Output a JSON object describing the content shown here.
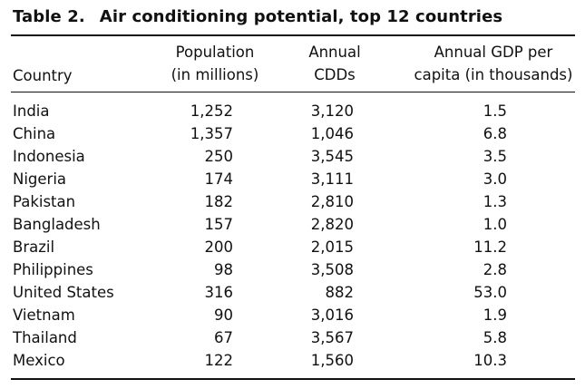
{
  "table": {
    "number": "Table 2.",
    "title": "Air conditioning potential, top 12 countries",
    "headers": {
      "country": "Country",
      "population": [
        "Population",
        "(in millions)"
      ],
      "cdds": [
        "Annual",
        "CDDs"
      ],
      "gdp": [
        "Annual GDP per",
        "capita (in thousands)"
      ]
    },
    "rows": [
      {
        "country": "India",
        "population": "1,252",
        "cdds": "3,120",
        "gdp": "1.5"
      },
      {
        "country": "China",
        "population": "1,357",
        "cdds": "1,046",
        "gdp": "6.8"
      },
      {
        "country": "Indonesia",
        "population": "250",
        "cdds": "3,545",
        "gdp": "3.5"
      },
      {
        "country": "Nigeria",
        "population": "174",
        "cdds": "3,111",
        "gdp": "3.0"
      },
      {
        "country": "Pakistan",
        "population": "182",
        "cdds": "2,810",
        "gdp": "1.3"
      },
      {
        "country": "Bangladesh",
        "population": "157",
        "cdds": "2,820",
        "gdp": "1.0"
      },
      {
        "country": "Brazil",
        "population": "200",
        "cdds": "2,015",
        "gdp": "11.2"
      },
      {
        "country": "Philippines",
        "population": "98",
        "cdds": "3,508",
        "gdp": "2.8"
      },
      {
        "country": "United States",
        "population": "316",
        "cdds": "882",
        "gdp": "53.0"
      },
      {
        "country": "Vietnam",
        "population": "90",
        "cdds": "3,016",
        "gdp": "1.9"
      },
      {
        "country": "Thailand",
        "population": "67",
        "cdds": "3,567",
        "gdp": "5.8"
      },
      {
        "country": "Mexico",
        "population": "122",
        "cdds": "1,560",
        "gdp": "10.3"
      }
    ]
  }
}
